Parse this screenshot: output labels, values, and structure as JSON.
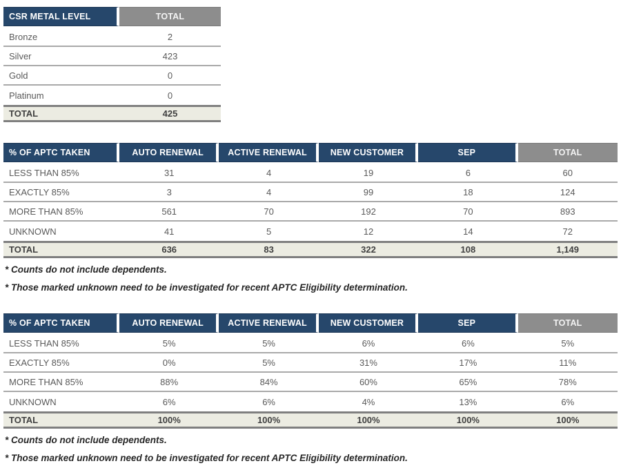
{
  "colors": {
    "header_navy": "#26476B",
    "header_gray": "#8D8D8D",
    "total_row_bg": "#ECECE2",
    "row_divider": "#A9A9A9",
    "total_divider": "#7F7F7F",
    "body_text": "#595959",
    "header_text": "#FFFFFF"
  },
  "metal_table": {
    "headers": [
      "CSR METAL LEVEL",
      "TOTAL"
    ],
    "rows": [
      {
        "label": "Bronze",
        "values": [
          "2"
        ]
      },
      {
        "label": "Silver",
        "values": [
          "423"
        ]
      },
      {
        "label": "Gold",
        "values": [
          "0"
        ]
      },
      {
        "label": "Platinum",
        "values": [
          "0"
        ]
      }
    ],
    "total": {
      "label": "TOTAL",
      "values": [
        "425"
      ]
    }
  },
  "aptc_counts_table": {
    "headers": [
      "% OF APTC TAKEN",
      "AUTO RENEWAL",
      "ACTIVE RENEWAL",
      "NEW CUSTOMER",
      "SEP",
      "TOTAL"
    ],
    "rows": [
      {
        "label": "LESS THAN 85%",
        "values": [
          "31",
          "4",
          "19",
          "6",
          "60"
        ]
      },
      {
        "label": "EXACTLY 85%",
        "values": [
          "3",
          "4",
          "99",
          "18",
          "124"
        ]
      },
      {
        "label": "MORE THAN 85%",
        "values": [
          "561",
          "70",
          "192",
          "70",
          "893"
        ]
      },
      {
        "label": "UNKNOWN",
        "values": [
          "41",
          "5",
          "12",
          "14",
          "72"
        ]
      }
    ],
    "total": {
      "label": "TOTAL",
      "values": [
        "636",
        "83",
        "322",
        "108",
        "1,149"
      ]
    },
    "footnotes": [
      "* Counts do not include dependents.",
      "* Those marked unknown need to be investigated for recent APTC Eligibility determination."
    ]
  },
  "aptc_percent_table": {
    "headers": [
      "% OF APTC TAKEN",
      "AUTO RENEWAL",
      "ACTIVE RENEWAL",
      "NEW CUSTOMER",
      "SEP",
      "TOTAL"
    ],
    "rows": [
      {
        "label": "LESS THAN 85%",
        "values": [
          "5%",
          "5%",
          "6%",
          "6%",
          "5%"
        ]
      },
      {
        "label": "EXACTLY 85%",
        "values": [
          "0%",
          "5%",
          "31%",
          "17%",
          "11%"
        ]
      },
      {
        "label": "MORE THAN 85%",
        "values": [
          "88%",
          "84%",
          "60%",
          "65%",
          "78%"
        ]
      },
      {
        "label": "UNKNOWN",
        "values": [
          "6%",
          "6%",
          "4%",
          "13%",
          "6%"
        ]
      }
    ],
    "total": {
      "label": "TOTAL",
      "values": [
        "100%",
        "100%",
        "100%",
        "100%",
        "100%"
      ]
    },
    "footnotes": [
      "* Counts do not include dependents.",
      "* Those marked unknown need to be investigated for recent APTC Eligibility determination."
    ]
  }
}
